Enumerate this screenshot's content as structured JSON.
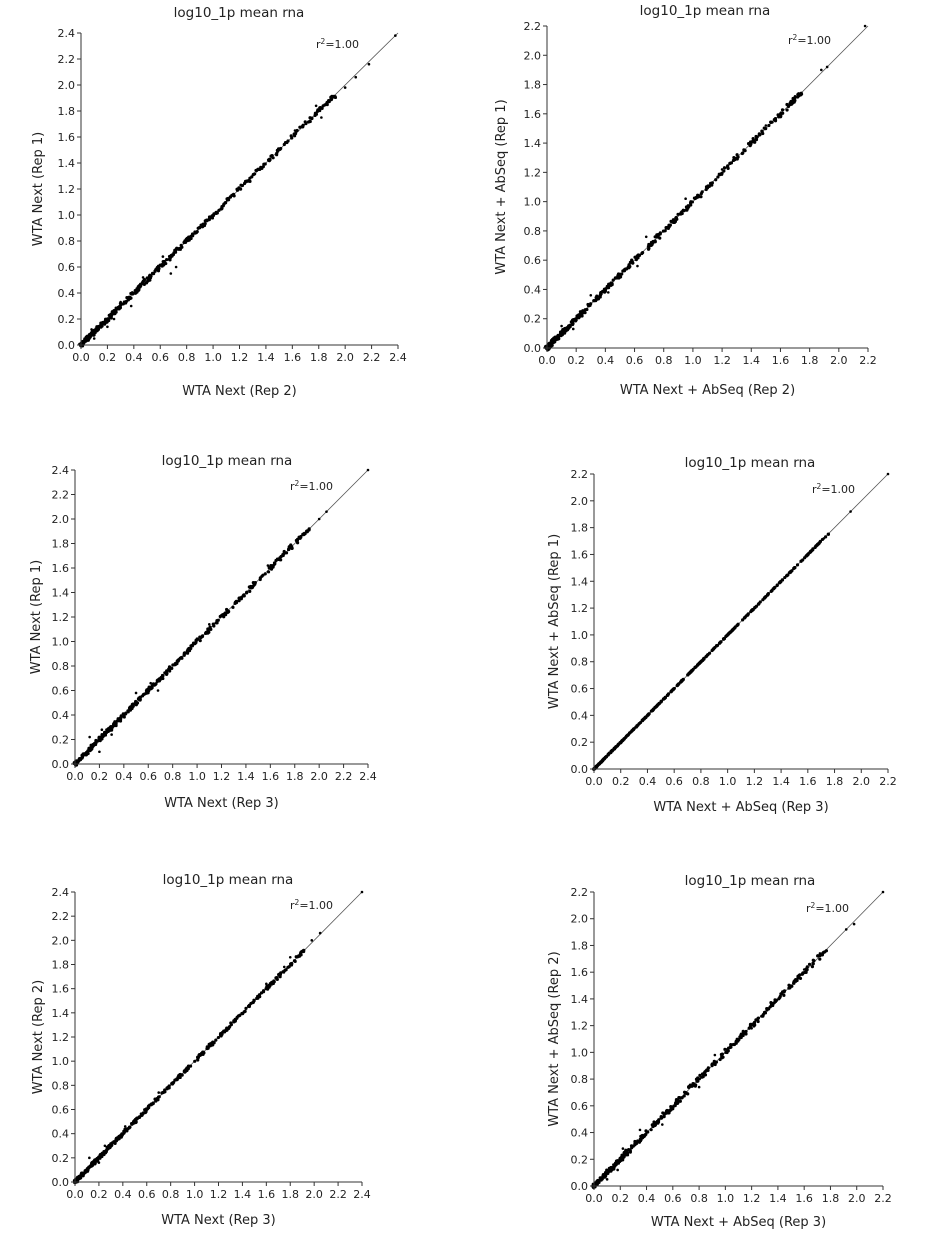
{
  "chart_data": [
    {
      "type": "scatter",
      "title": "log10_1p mean rna",
      "xlabel": "WTA Next (Rep 2)",
      "ylabel": "WTA Next (Rep 1)",
      "annotation": {
        "base": "r",
        "superscript": "2",
        "suffix": "=1.00"
      },
      "xlim": [
        0,
        2.4
      ],
      "ylim": [
        0,
        2.4
      ],
      "xticks": [
        "0.0",
        "0.2",
        "0.4",
        "0.6",
        "0.8",
        "1.0",
        "1.2",
        "1.4",
        "1.6",
        "1.8",
        "2.0",
        "2.2",
        "2.4"
      ],
      "yticks": [
        "0.0",
        "0.2",
        "0.4",
        "0.6",
        "0.8",
        "1.0",
        "1.2",
        "1.4",
        "1.6",
        "1.8",
        "2.0",
        "2.2",
        "2.4"
      ],
      "reference_line": [
        [
          0,
          0
        ],
        [
          2.4,
          2.4
        ]
      ],
      "grid": false,
      "outliers": [
        [
          0.08,
          0.12
        ],
        [
          0.1,
          0.05
        ],
        [
          0.2,
          0.14
        ],
        [
          0.25,
          0.2
        ],
        [
          0.3,
          0.33
        ],
        [
          0.38,
          0.3
        ],
        [
          0.47,
          0.52
        ],
        [
          0.62,
          0.68
        ],
        [
          0.68,
          0.55
        ],
        [
          0.72,
          0.6
        ],
        [
          1.62,
          1.65
        ],
        [
          1.78,
          1.84
        ],
        [
          1.82,
          1.75
        ],
        [
          1.9,
          1.9
        ],
        [
          2.0,
          1.98
        ],
        [
          2.08,
          2.06
        ],
        [
          2.18,
          2.16
        ],
        [
          2.38,
          2.38
        ]
      ],
      "spread": 0.012,
      "n_points": 420
    },
    {
      "type": "scatter",
      "title": "log10_1p mean rna",
      "xlabel": "WTA Next + AbSeq (Rep 2)",
      "ylabel": "WTA Next + AbSeq (Rep 1)",
      "annotation": {
        "base": "r",
        "superscript": "2",
        "suffix": "=1.00"
      },
      "xlim": [
        0,
        2.2
      ],
      "ylim": [
        0,
        2.2
      ],
      "xticks": [
        "0.0",
        "0.2",
        "0.4",
        "0.6",
        "0.8",
        "1.0",
        "1.2",
        "1.4",
        "1.6",
        "1.8",
        "2.0",
        "2.2"
      ],
      "yticks": [
        "0.0",
        "0.2",
        "0.4",
        "0.6",
        "0.8",
        "1.0",
        "1.2",
        "1.4",
        "1.6",
        "1.8",
        "2.0",
        "2.2"
      ],
      "reference_line": [
        [
          0,
          0
        ],
        [
          2.2,
          2.2
        ]
      ],
      "grid": false,
      "outliers": [
        [
          0.1,
          0.15
        ],
        [
          0.18,
          0.13
        ],
        [
          0.3,
          0.36
        ],
        [
          0.42,
          0.38
        ],
        [
          0.62,
          0.56
        ],
        [
          0.68,
          0.76
        ],
        [
          0.95,
          1.02
        ],
        [
          1.2,
          1.22
        ],
        [
          1.5,
          1.52
        ],
        [
          1.7,
          1.72
        ],
        [
          1.88,
          1.9
        ],
        [
          1.92,
          1.92
        ],
        [
          2.18,
          2.2
        ]
      ],
      "spread": 0.012,
      "n_points": 400
    },
    {
      "type": "scatter",
      "title": "log10_1p mean rna",
      "xlabel": "WTA Next (Rep 3)",
      "ylabel": "WTA Next (Rep 1)",
      "annotation": {
        "base": "r",
        "superscript": "2",
        "suffix": "=1.00"
      },
      "xlim": [
        0,
        2.4
      ],
      "ylim": [
        0,
        2.4
      ],
      "xticks": [
        "0.0",
        "0.2",
        "0.4",
        "0.6",
        "0.8",
        "1.0",
        "1.2",
        "1.4",
        "1.6",
        "1.8",
        "2.0",
        "2.2",
        "2.4"
      ],
      "yticks": [
        "0.0",
        "0.2",
        "0.4",
        "0.6",
        "0.8",
        "1.0",
        "1.2",
        "1.4",
        "1.6",
        "1.8",
        "2.0",
        "2.2",
        "2.4"
      ],
      "reference_line": [
        [
          0,
          0
        ],
        [
          2.4,
          2.4
        ]
      ],
      "grid": false,
      "outliers": [
        [
          0.12,
          0.22
        ],
        [
          0.2,
          0.1
        ],
        [
          0.22,
          0.28
        ],
        [
          0.3,
          0.24
        ],
        [
          0.5,
          0.58
        ],
        [
          0.68,
          0.6
        ],
        [
          0.62,
          0.66
        ],
        [
          1.1,
          1.14
        ],
        [
          1.58,
          1.62
        ],
        [
          1.85,
          1.86
        ],
        [
          2.0,
          2.0
        ],
        [
          2.06,
          2.06
        ],
        [
          2.4,
          2.4
        ]
      ],
      "spread": 0.012,
      "n_points": 420
    },
    {
      "type": "scatter",
      "title": "log10_1p mean rna",
      "xlabel": "WTA Next + AbSeq (Rep 3)",
      "ylabel": "WTA Next + AbSeq (Rep 1)",
      "annotation": {
        "base": "r",
        "superscript": "2",
        "suffix": "=1.00"
      },
      "xlim": [
        0,
        2.2
      ],
      "ylim": [
        0,
        2.2
      ],
      "xticks": [
        "0.0",
        "0.2",
        "0.4",
        "0.6",
        "0.8",
        "1.0",
        "1.2",
        "1.4",
        "1.6",
        "1.8",
        "2.0",
        "2.2"
      ],
      "yticks": [
        "0.0",
        "0.2",
        "0.4",
        "0.6",
        "0.8",
        "1.0",
        "1.2",
        "1.4",
        "1.6",
        "1.8",
        "2.0",
        "2.2"
      ],
      "reference_line": [
        [
          0,
          0
        ],
        [
          2.2,
          2.2
        ]
      ],
      "grid": false,
      "outliers": [
        [
          1.2,
          1.2
        ],
        [
          1.5,
          1.5
        ],
        [
          1.62,
          1.62
        ],
        [
          1.72,
          1.72
        ],
        [
          1.92,
          1.92
        ],
        [
          2.2,
          2.2
        ]
      ],
      "spread": 0.002,
      "n_points": 400
    },
    {
      "type": "scatter",
      "title": "log10_1p mean rna",
      "xlabel": "WTA Next (Rep 3)",
      "ylabel": "WTA Next (Rep 2)",
      "annotation": {
        "base": "r",
        "superscript": "2",
        "suffix": "=1.00"
      },
      "xlim": [
        0,
        2.4
      ],
      "ylim": [
        0,
        2.4
      ],
      "xticks": [
        "0.0",
        "0.2",
        "0.4",
        "0.6",
        "0.8",
        "1.0",
        "1.2",
        "1.4",
        "1.6",
        "1.8",
        "2.0",
        "2.2",
        "2.4"
      ],
      "yticks": [
        "0.0",
        "0.2",
        "0.4",
        "0.6",
        "0.8",
        "1.0",
        "1.2",
        "1.4",
        "1.6",
        "1.8",
        "2.0",
        "2.2",
        "2.4"
      ],
      "reference_line": [
        [
          0,
          0
        ],
        [
          2.4,
          2.4
        ]
      ],
      "grid": false,
      "outliers": [
        [
          0.12,
          0.2
        ],
        [
          0.2,
          0.16
        ],
        [
          0.25,
          0.3
        ],
        [
          0.42,
          0.46
        ],
        [
          0.7,
          0.74
        ],
        [
          1.6,
          1.64
        ],
        [
          1.75,
          1.78
        ],
        [
          1.8,
          1.86
        ],
        [
          1.98,
          2.0
        ],
        [
          2.05,
          2.06
        ],
        [
          2.4,
          2.4
        ]
      ],
      "spread": 0.01,
      "n_points": 420
    },
    {
      "type": "scatter",
      "title": "log10_1p mean rna",
      "xlabel": "WTA Next + AbSeq (Rep 3)",
      "ylabel": "WTA Next + AbSeq (Rep 2)",
      "annotation": {
        "base": "r",
        "superscript": "2",
        "suffix": "=1.00"
      },
      "xlim": [
        0,
        2.2
      ],
      "ylim": [
        0,
        2.2
      ],
      "xticks": [
        "0.0",
        "0.2",
        "0.4",
        "0.6",
        "0.8",
        "1.0",
        "1.2",
        "1.4",
        "1.6",
        "1.8",
        "2.0",
        "2.2"
      ],
      "yticks": [
        "0.0",
        "0.2",
        "0.4",
        "0.6",
        "0.8",
        "1.0",
        "1.2",
        "1.4",
        "1.6",
        "1.8",
        "2.0",
        "2.2"
      ],
      "reference_line": [
        [
          0,
          0
        ],
        [
          2.2,
          2.2
        ]
      ],
      "grid": false,
      "outliers": [
        [
          0.1,
          0.05
        ],
        [
          0.18,
          0.12
        ],
        [
          0.22,
          0.28
        ],
        [
          0.35,
          0.42
        ],
        [
          0.52,
          0.46
        ],
        [
          0.62,
          0.6
        ],
        [
          0.8,
          0.74
        ],
        [
          0.92,
          0.98
        ],
        [
          1.2,
          1.18
        ],
        [
          1.6,
          1.62
        ],
        [
          1.72,
          1.74
        ],
        [
          1.92,
          1.92
        ],
        [
          1.98,
          1.96
        ],
        [
          2.2,
          2.2
        ]
      ],
      "spread": 0.014,
      "n_points": 400
    }
  ]
}
